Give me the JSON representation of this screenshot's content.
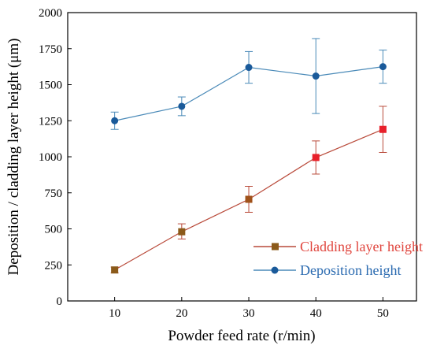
{
  "chart_data": {
    "type": "line",
    "xlabel": "Powder feed rate (r/min)",
    "ylabel": "Deposition / cladding layer height (μm)",
    "xlim": [
      3,
      55
    ],
    "ylim": [
      0,
      2000
    ],
    "x_ticks": [
      10,
      20,
      30,
      40,
      50
    ],
    "y_ticks": [
      0,
      250,
      500,
      750,
      1000,
      1250,
      1500,
      1750,
      2000
    ],
    "x_tick_labels": [
      "10",
      "20",
      "30",
      "40",
      "50"
    ],
    "y_tick_labels": [
      "0",
      "250",
      "500",
      "750",
      "1000",
      "1250",
      "1500",
      "1750",
      "2000"
    ],
    "grid": false,
    "legend_position": "bottom-right",
    "series": [
      {
        "name": "Cladding layer height",
        "color": "#b94a3a",
        "marker": "square",
        "legend_color": "#e0443c",
        "x": [
          10,
          20,
          30,
          40,
          50
        ],
        "y": [
          215,
          480,
          705,
          995,
          1190
        ],
        "err_low": [
          20,
          50,
          90,
          115,
          160
        ],
        "err_high": [
          20,
          55,
          90,
          115,
          160
        ],
        "marker_colors": [
          "#8b5a1a",
          "#8b5a1a",
          "#a0521a",
          "#e8202a",
          "#e8202a"
        ]
      },
      {
        "name": "Deposition height",
        "color": "#4a8ab8",
        "marker": "circle",
        "legend_color": "#2a6ab0",
        "x": [
          10,
          20,
          30,
          40,
          50
        ],
        "y": [
          1250,
          1350,
          1620,
          1560,
          1625
        ],
        "err_low": [
          60,
          65,
          110,
          260,
          115
        ],
        "err_high": [
          60,
          65,
          110,
          260,
          115
        ],
        "marker_colors": [
          "#1a5a9a",
          "#1a5a9a",
          "#1a5a9a",
          "#1a5a9a",
          "#1a5a9a"
        ]
      }
    ]
  }
}
